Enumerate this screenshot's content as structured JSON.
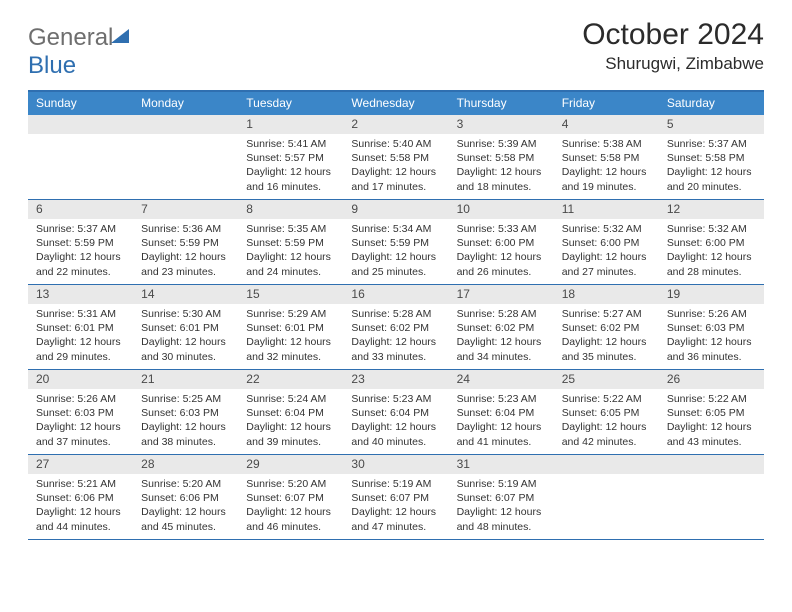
{
  "brand": {
    "word1": "General",
    "word2": "Blue"
  },
  "title": "October 2024",
  "location": "Shurugwi, Zimbabwe",
  "colors": {
    "accent": "#2f6fb0",
    "header_bg": "#3b86c8",
    "daynum_bg": "#e9e9e9",
    "text": "#333333"
  },
  "weekdays": [
    "Sunday",
    "Monday",
    "Tuesday",
    "Wednesday",
    "Thursday",
    "Friday",
    "Saturday"
  ],
  "weeks": [
    [
      null,
      null,
      {
        "n": "1",
        "sr": "5:41 AM",
        "ss": "5:57 PM",
        "dl": "12 hours and 16 minutes."
      },
      {
        "n": "2",
        "sr": "5:40 AM",
        "ss": "5:58 PM",
        "dl": "12 hours and 17 minutes."
      },
      {
        "n": "3",
        "sr": "5:39 AM",
        "ss": "5:58 PM",
        "dl": "12 hours and 18 minutes."
      },
      {
        "n": "4",
        "sr": "5:38 AM",
        "ss": "5:58 PM",
        "dl": "12 hours and 19 minutes."
      },
      {
        "n": "5",
        "sr": "5:37 AM",
        "ss": "5:58 PM",
        "dl": "12 hours and 20 minutes."
      }
    ],
    [
      {
        "n": "6",
        "sr": "5:37 AM",
        "ss": "5:59 PM",
        "dl": "12 hours and 22 minutes."
      },
      {
        "n": "7",
        "sr": "5:36 AM",
        "ss": "5:59 PM",
        "dl": "12 hours and 23 minutes."
      },
      {
        "n": "8",
        "sr": "5:35 AM",
        "ss": "5:59 PM",
        "dl": "12 hours and 24 minutes."
      },
      {
        "n": "9",
        "sr": "5:34 AM",
        "ss": "5:59 PM",
        "dl": "12 hours and 25 minutes."
      },
      {
        "n": "10",
        "sr": "5:33 AM",
        "ss": "6:00 PM",
        "dl": "12 hours and 26 minutes."
      },
      {
        "n": "11",
        "sr": "5:32 AM",
        "ss": "6:00 PM",
        "dl": "12 hours and 27 minutes."
      },
      {
        "n": "12",
        "sr": "5:32 AM",
        "ss": "6:00 PM",
        "dl": "12 hours and 28 minutes."
      }
    ],
    [
      {
        "n": "13",
        "sr": "5:31 AM",
        "ss": "6:01 PM",
        "dl": "12 hours and 29 minutes."
      },
      {
        "n": "14",
        "sr": "5:30 AM",
        "ss": "6:01 PM",
        "dl": "12 hours and 30 minutes."
      },
      {
        "n": "15",
        "sr": "5:29 AM",
        "ss": "6:01 PM",
        "dl": "12 hours and 32 minutes."
      },
      {
        "n": "16",
        "sr": "5:28 AM",
        "ss": "6:02 PM",
        "dl": "12 hours and 33 minutes."
      },
      {
        "n": "17",
        "sr": "5:28 AM",
        "ss": "6:02 PM",
        "dl": "12 hours and 34 minutes."
      },
      {
        "n": "18",
        "sr": "5:27 AM",
        "ss": "6:02 PM",
        "dl": "12 hours and 35 minutes."
      },
      {
        "n": "19",
        "sr": "5:26 AM",
        "ss": "6:03 PM",
        "dl": "12 hours and 36 minutes."
      }
    ],
    [
      {
        "n": "20",
        "sr": "5:26 AM",
        "ss": "6:03 PM",
        "dl": "12 hours and 37 minutes."
      },
      {
        "n": "21",
        "sr": "5:25 AM",
        "ss": "6:03 PM",
        "dl": "12 hours and 38 minutes."
      },
      {
        "n": "22",
        "sr": "5:24 AM",
        "ss": "6:04 PM",
        "dl": "12 hours and 39 minutes."
      },
      {
        "n": "23",
        "sr": "5:23 AM",
        "ss": "6:04 PM",
        "dl": "12 hours and 40 minutes."
      },
      {
        "n": "24",
        "sr": "5:23 AM",
        "ss": "6:04 PM",
        "dl": "12 hours and 41 minutes."
      },
      {
        "n": "25",
        "sr": "5:22 AM",
        "ss": "6:05 PM",
        "dl": "12 hours and 42 minutes."
      },
      {
        "n": "26",
        "sr": "5:22 AM",
        "ss": "6:05 PM",
        "dl": "12 hours and 43 minutes."
      }
    ],
    [
      {
        "n": "27",
        "sr": "5:21 AM",
        "ss": "6:06 PM",
        "dl": "12 hours and 44 minutes."
      },
      {
        "n": "28",
        "sr": "5:20 AM",
        "ss": "6:06 PM",
        "dl": "12 hours and 45 minutes."
      },
      {
        "n": "29",
        "sr": "5:20 AM",
        "ss": "6:07 PM",
        "dl": "12 hours and 46 minutes."
      },
      {
        "n": "30",
        "sr": "5:19 AM",
        "ss": "6:07 PM",
        "dl": "12 hours and 47 minutes."
      },
      {
        "n": "31",
        "sr": "5:19 AM",
        "ss": "6:07 PM",
        "dl": "12 hours and 48 minutes."
      },
      null,
      null
    ]
  ],
  "labels": {
    "sunrise": "Sunrise:",
    "sunset": "Sunset:",
    "daylight": "Daylight:"
  }
}
